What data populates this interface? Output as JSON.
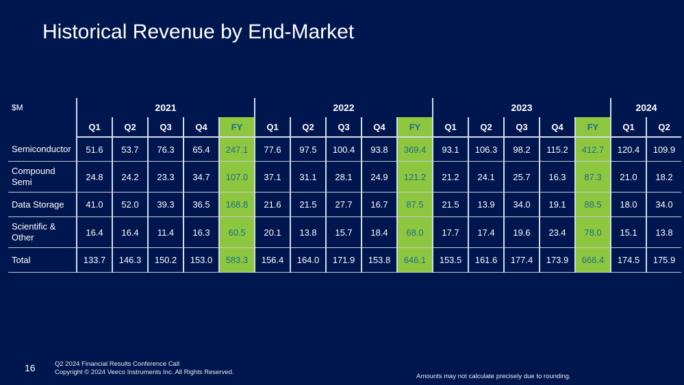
{
  "title": "Historical Revenue by End-Market",
  "table": {
    "unit_label": "$M",
    "years": [
      {
        "year": "2021",
        "periods": [
          "Q1",
          "Q2",
          "Q3",
          "Q4",
          "FY"
        ]
      },
      {
        "year": "2022",
        "periods": [
          "Q1",
          "Q2",
          "Q3",
          "Q4",
          "FY"
        ]
      },
      {
        "year": "2023",
        "periods": [
          "Q1",
          "Q2",
          "Q3",
          "Q4",
          "FY"
        ]
      },
      {
        "year": "2024",
        "periods": [
          "Q1",
          "Q2"
        ]
      }
    ],
    "rows": [
      {
        "label": "Semiconductor",
        "values": [
          "51.6",
          "53.7",
          "76.3",
          "65.4",
          "247.1",
          "77.6",
          "97.5",
          "100.4",
          "93.8",
          "369.4",
          "93.1",
          "106.3",
          "98.2",
          "115.2",
          "412.7",
          "120.4",
          "109.9"
        ]
      },
      {
        "label": "Compound Semi",
        "values": [
          "24.8",
          "24.2",
          "23.3",
          "34.7",
          "107.0",
          "37.1",
          "31.1",
          "28.1",
          "24.9",
          "121.2",
          "21.2",
          "24.1",
          "25.7",
          "16.3",
          "87.3",
          "21.0",
          "18.2"
        ]
      },
      {
        "label": "Data Storage",
        "values": [
          "41.0",
          "52.0",
          "39.3",
          "36.5",
          "168.8",
          "21.6",
          "21.5",
          "27.7",
          "16.7",
          "87.5",
          "21.5",
          "13.9",
          "34.0",
          "19.1",
          "88.5",
          "18.0",
          "34.0"
        ]
      },
      {
        "label": "Scientific & Other",
        "values": [
          "16.4",
          "16.4",
          "11.4",
          "16.3",
          "60.5",
          "20.1",
          "13.8",
          "15.7",
          "18.4",
          "68.0",
          "17.7",
          "17.4",
          "19.6",
          "23.4",
          "78.0",
          "15.1",
          "13.8"
        ]
      },
      {
        "label": "Total",
        "values": [
          "133.7",
          "146.3",
          "150.2",
          "153.0",
          "583.3",
          "156.4",
          "164.0",
          "171.9",
          "153.8",
          "646.1",
          "153.5",
          "161.6",
          "177.4",
          "173.9",
          "666.4",
          "174.5",
          "175.9"
        ]
      }
    ]
  },
  "footer": {
    "page_number": "16",
    "line1": "Q2 2024 Financial Results Conference Call",
    "line2": "Copyright © 2024 Veeco Instruments Inc. All Rights Reserved.",
    "note": "Amounts may not calculate precisely due to rounding."
  },
  "colors": {
    "background": "#00164f",
    "fy_highlight": "#8dc63f",
    "fy_text": "#1d6f8a"
  }
}
